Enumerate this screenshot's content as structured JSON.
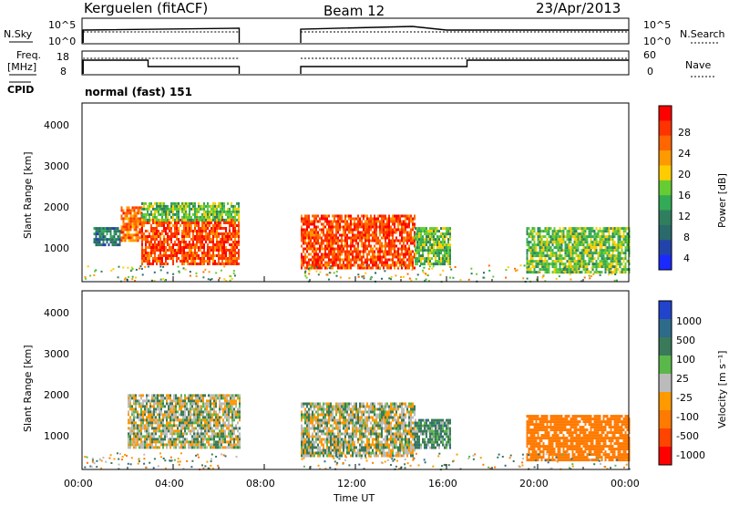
{
  "header": {
    "station": "Kerguelen (fitACF)",
    "beam": "Beam 12",
    "date": "23/Apr/2013"
  },
  "side_labels": {
    "nsky": "N.Sky",
    "nsearch": "N.Search",
    "freq": "Freq.",
    "freq_unit": "[MHz]",
    "nave": "Nave",
    "cpid": "CPID",
    "cpid_value": "normal (fast) 151"
  },
  "noise_panel": {
    "left_ticks": [
      "10^5",
      "10^0"
    ],
    "right_ticks": [
      "10^5",
      "10^0"
    ]
  },
  "freq_panel": {
    "left_ticks": [
      "18",
      "8"
    ],
    "right_ticks": [
      "60",
      "0"
    ]
  },
  "x_axis": {
    "label": "Time UT",
    "ticks": [
      "00:00",
      "04:00",
      "08:00",
      "12:00",
      "16:00",
      "20:00",
      "00:00"
    ]
  },
  "range_axis": {
    "label": "Slant Range [km]",
    "ticks": [
      "4000",
      "3000",
      "2000",
      "1000"
    ]
  },
  "power_colorbar": {
    "label": "Power [dB]",
    "ticks": [
      "28",
      "24",
      "20",
      "16",
      "12",
      "8",
      "4"
    ],
    "colors": [
      "#ff0000",
      "#ff3300",
      "#ff6600",
      "#ff9900",
      "#ffcc00",
      "#66cc33",
      "#33aa55",
      "#2f7f5f",
      "#2a6a6a",
      "#2244aa",
      "#1a2aff"
    ]
  },
  "velocity_colorbar": {
    "label": "Velocity [m s⁻¹]",
    "ticks": [
      "1000",
      "500",
      "100",
      "25",
      "-25",
      "-100",
      "-500",
      "-1000"
    ],
    "colors": [
      "#2244cc",
      "#2e6a8a",
      "#3a7a5a",
      "#5ab84a",
      "#bbbbbb",
      "#ff9900",
      "#ff7a00",
      "#ff4400",
      "#ff0000"
    ]
  },
  "chart_data": [
    {
      "type": "heatmap",
      "title": "Power",
      "xlabel": "Time UT",
      "ylabel": "Slant Range [km]",
      "xlim": [
        0,
        24
      ],
      "ylim": [
        180,
        4500
      ],
      "clim": [
        0,
        30
      ],
      "echo_regions": [
        {
          "t_start": 0.5,
          "t_end": 1.7,
          "r_start": 1100,
          "r_end": 1500,
          "value": 8
        },
        {
          "t_start": 1.7,
          "t_end": 2.6,
          "r_start": 1200,
          "r_end": 2000,
          "value": 24
        },
        {
          "t_start": 2.6,
          "t_end": 6.9,
          "r_start": 600,
          "r_end": 1700,
          "value": 26
        },
        {
          "t_start": 2.6,
          "t_end": 6.9,
          "r_start": 1700,
          "r_end": 2100,
          "value": 14
        },
        {
          "t_start": 9.6,
          "t_end": 14.6,
          "r_start": 500,
          "r_end": 1800,
          "value": 26
        },
        {
          "t_start": 14.6,
          "t_end": 16.2,
          "r_start": 600,
          "r_end": 1500,
          "value": 14
        },
        {
          "t_start": 19.5,
          "t_end": 24.0,
          "r_start": 400,
          "r_end": 1500,
          "value": 14
        }
      ],
      "data_gap_hours": [
        6.9,
        9.6
      ]
    },
    {
      "type": "heatmap",
      "title": "Velocity",
      "xlabel": "Time UT",
      "ylabel": "Slant Range [km]",
      "xlim": [
        0,
        24
      ],
      "ylim": [
        180,
        4500
      ],
      "clim": [
        -1000,
        1000
      ],
      "echo_regions": [
        {
          "t_start": 2.0,
          "t_end": 6.9,
          "r_start": 700,
          "r_end": 2000,
          "value": 0
        },
        {
          "t_start": 9.6,
          "t_end": 14.6,
          "r_start": 500,
          "r_end": 1800,
          "value": 0
        },
        {
          "t_start": 14.6,
          "t_end": 16.2,
          "r_start": 700,
          "r_end": 1400,
          "value": 50
        },
        {
          "t_start": 19.5,
          "t_end": 24.0,
          "r_start": 400,
          "r_end": 1500,
          "value": -200
        }
      ],
      "data_gap_hours": [
        6.9,
        9.6
      ]
    }
  ]
}
